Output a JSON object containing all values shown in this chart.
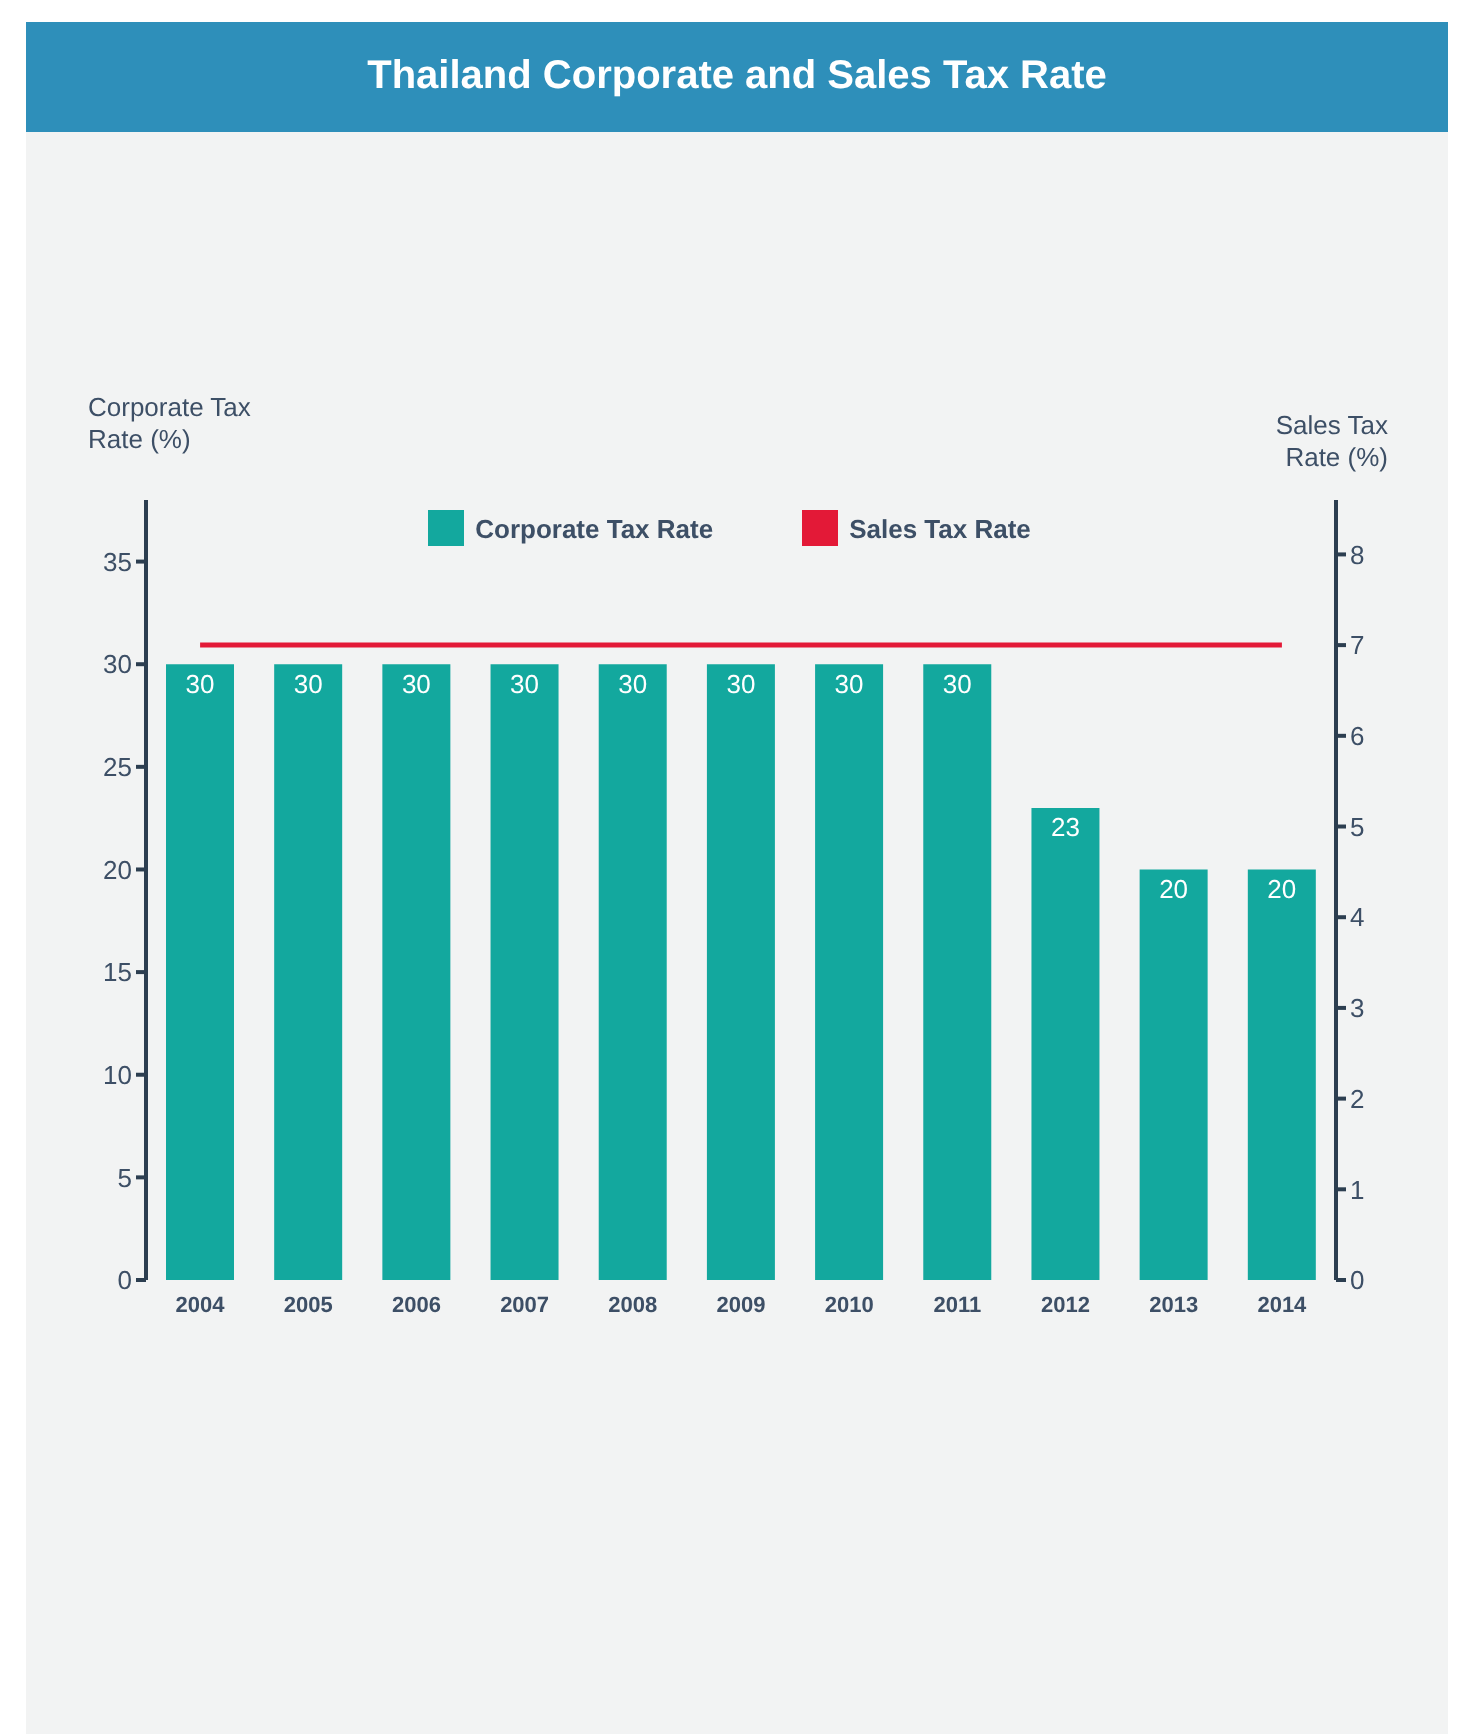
{
  "chart_data": {
    "type": "bar",
    "title": "Thailand Corporate and Sales Tax Rate",
    "ylabel": "Corporate Tax Rate (%)",
    "y2label": "Sales Tax Rate (%)",
    "categories": [
      "2004",
      "2005",
      "2006",
      "2007",
      "2008",
      "2009",
      "2010",
      "2011",
      "2012",
      "2013",
      "2014"
    ],
    "series": [
      {
        "name": "Corporate Tax Rate",
        "color": "#13a89e",
        "values": [
          30,
          30,
          30,
          30,
          30,
          30,
          30,
          30,
          23,
          20,
          20
        ],
        "data_labels": true
      },
      {
        "name": "Sales Tax Rate",
        "type": "line",
        "color": "#e31937",
        "axis": "y2",
        "values": [
          7,
          7,
          7,
          7,
          7,
          7,
          7,
          7,
          7,
          7,
          7
        ]
      }
    ],
    "ylim": [
      0,
      38
    ],
    "yticks": [
      0,
      5,
      10,
      15,
      20,
      25,
      30,
      35
    ],
    "y2lim": [
      0,
      8.6
    ],
    "y2ticks": [
      0,
      1,
      2,
      3,
      4,
      5,
      6,
      7,
      8
    ],
    "grid": false,
    "legend": "top"
  }
}
